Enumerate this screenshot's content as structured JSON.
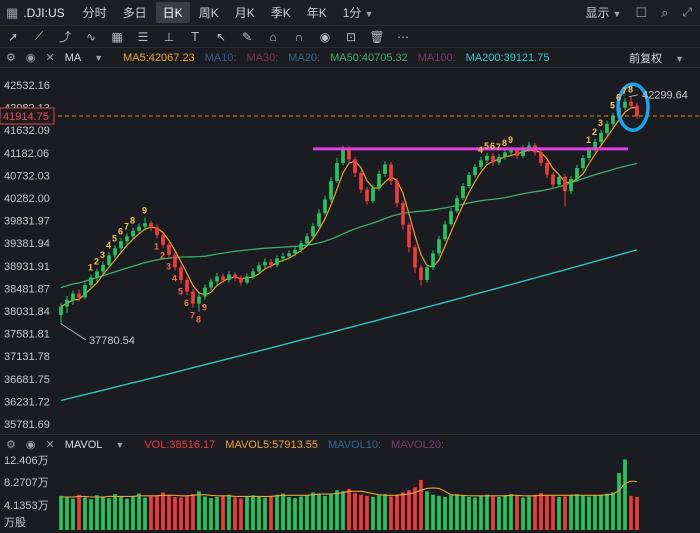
{
  "header": {
    "symbol": ".DJI:US",
    "timeframes": [
      "分时",
      "多日",
      "日K",
      "周K",
      "月K",
      "季K",
      "年K",
      "1分"
    ],
    "active_timeframe": "日K",
    "display_label": "显示"
  },
  "indicator_bar": {
    "ma_label": "MA",
    "ma5": "MA5:42067.23",
    "ma10": "MA10:",
    "ma30": "MA30:",
    "ma20": "MA20:",
    "ma50": "MA50:40705.32",
    "ma100": "MA100:",
    "ma200": "MA200:39121.75",
    "adjust": "前复权"
  },
  "volume_bar": {
    "label": "MAVOL",
    "vol": "VOL:38516.17",
    "mavol5": "MAVOL5:57913.55",
    "mavol10": "MAVOL10:",
    "mavol20": "MAVOL20:"
  },
  "colors": {
    "up": "#22c55e",
    "down": "#ef3b3b",
    "ma5": "#f0a030",
    "ma50": "#3fae6a",
    "ma200": "#31c4c4",
    "resistance": "#e040e0",
    "highlight": "#1aa3f0"
  },
  "chart_data": {
    "type": "candlestick",
    "price_ticks": [
      "42532.16",
      "42082.13",
      "41632.09",
      "41182.06",
      "40732.03",
      "40282.00",
      "39831.97",
      "39381.94",
      "38931.91",
      "38481.87",
      "38031.84",
      "37581.81",
      "37131.78",
      "36681.75",
      "36231.72",
      "35781.69"
    ],
    "ylim": [
      35781.69,
      42532.16
    ],
    "current_price": "41914.75",
    "high_label": "42299.64",
    "low_label": "37780.54",
    "volume_ticks": [
      "12.406万",
      "8.2707万",
      "4.1353万",
      "万股"
    ],
    "resistance_level": 41260,
    "candles": [
      [
        37950,
        38120,
        37780,
        38180
      ],
      [
        38120,
        38250,
        38000,
        38330
      ],
      [
        38250,
        38380,
        38150,
        38440
      ],
      [
        38380,
        38300,
        38220,
        38460
      ],
      [
        38300,
        38550,
        38260,
        38600
      ],
      [
        38550,
        38700,
        38480,
        38760
      ],
      [
        38700,
        38820,
        38620,
        38880
      ],
      [
        38820,
        38950,
        38760,
        39010
      ],
      [
        38950,
        39140,
        38900,
        39200
      ],
      [
        39140,
        39280,
        39080,
        39340
      ],
      [
        39280,
        39420,
        39210,
        39480
      ],
      [
        39420,
        39520,
        39350,
        39580
      ],
      [
        39520,
        39630,
        39460,
        39690
      ],
      [
        39630,
        39710,
        39570,
        39780
      ],
      [
        39710,
        39780,
        39640,
        39890
      ],
      [
        39780,
        39700,
        39620,
        39830
      ],
      [
        39700,
        39540,
        39480,
        39760
      ],
      [
        39540,
        39350,
        39300,
        39580
      ],
      [
        39350,
        39150,
        39080,
        39400
      ],
      [
        39150,
        38900,
        38840,
        39200
      ],
      [
        38900,
        38650,
        38580,
        38950
      ],
      [
        38650,
        38420,
        38350,
        38700
      ],
      [
        38420,
        38180,
        38100,
        38470
      ],
      [
        38180,
        38320,
        38020,
        38380
      ],
      [
        38320,
        38500,
        38260,
        38560
      ],
      [
        38500,
        38620,
        38440,
        38680
      ],
      [
        38620,
        38720,
        38560,
        38790
      ],
      [
        38720,
        38650,
        38590,
        38780
      ],
      [
        38650,
        38760,
        38600,
        38820
      ],
      [
        38760,
        38690,
        38620,
        38800
      ],
      [
        38690,
        38600,
        38540,
        38740
      ],
      [
        38600,
        38720,
        38560,
        38780
      ],
      [
        38720,
        38820,
        38660,
        38880
      ],
      [
        38820,
        38940,
        38760,
        39000
      ],
      [
        38940,
        39010,
        38880,
        39080
      ],
      [
        39010,
        38950,
        38880,
        39070
      ],
      [
        38950,
        39080,
        38900,
        39140
      ],
      [
        39080,
        39120,
        39020,
        39190
      ],
      [
        39120,
        39180,
        39060,
        39240
      ],
      [
        39180,
        39250,
        39120,
        39320
      ],
      [
        39250,
        39380,
        39200,
        39440
      ],
      [
        39380,
        39520,
        39320,
        39580
      ],
      [
        39520,
        39720,
        39480,
        39790
      ],
      [
        39720,
        39980,
        39680,
        40060
      ],
      [
        39980,
        40250,
        39940,
        40330
      ],
      [
        40250,
        40620,
        40200,
        40700
      ],
      [
        40620,
        40980,
        40580,
        41080
      ],
      [
        40980,
        41260,
        40930,
        41320
      ],
      [
        41260,
        41050,
        40960,
        41320
      ],
      [
        41050,
        40780,
        40700,
        41100
      ],
      [
        40780,
        40450,
        40380,
        40820
      ],
      [
        40450,
        40220,
        40150,
        40500
      ],
      [
        40220,
        40480,
        40180,
        40550
      ],
      [
        40480,
        40760,
        40430,
        40830
      ],
      [
        40760,
        40950,
        40700,
        41010
      ],
      [
        40950,
        40620,
        40540,
        41000
      ],
      [
        40620,
        40180,
        40100,
        40680
      ],
      [
        40180,
        39750,
        39650,
        40220
      ],
      [
        39750,
        39300,
        39200,
        39800
      ],
      [
        39300,
        38900,
        38780,
        39350
      ],
      [
        38900,
        38650,
        38540,
        38950
      ],
      [
        38650,
        38900,
        38600,
        38960
      ],
      [
        38900,
        39180,
        38850,
        39240
      ],
      [
        39180,
        39460,
        39120,
        39520
      ],
      [
        39460,
        39760,
        39420,
        39830
      ],
      [
        39760,
        40020,
        39720,
        40080
      ],
      [
        40020,
        40280,
        39980,
        40340
      ],
      [
        40280,
        40520,
        40240,
        40580
      ],
      [
        40520,
        40740,
        40480,
        40800
      ],
      [
        40740,
        40900,
        40690,
        40960
      ],
      [
        40900,
        41030,
        40850,
        41100
      ],
      [
        41030,
        41120,
        40980,
        41180
      ],
      [
        41120,
        40990,
        40920,
        41180
      ],
      [
        40990,
        41100,
        40940,
        41160
      ],
      [
        41100,
        41190,
        41040,
        41240
      ],
      [
        41190,
        41230,
        41120,
        41300
      ],
      [
        41230,
        41120,
        41060,
        41280
      ],
      [
        41120,
        41260,
        41080,
        41330
      ],
      [
        41260,
        41330,
        41200,
        41400
      ],
      [
        41330,
        41190,
        41130,
        41380
      ],
      [
        41190,
        40980,
        40920,
        41240
      ],
      [
        40980,
        40750,
        40680,
        41030
      ],
      [
        40750,
        40550,
        40460,
        40800
      ],
      [
        40550,
        40700,
        40500,
        40760
      ],
      [
        40700,
        40420,
        40120,
        40760
      ],
      [
        40420,
        40660,
        40360,
        40720
      ],
      [
        40660,
        40880,
        40600,
        40940
      ],
      [
        40880,
        41080,
        40830,
        41140
      ],
      [
        41080,
        41250,
        41030,
        41300
      ],
      [
        41250,
        41400,
        41200,
        41460
      ],
      [
        41400,
        41580,
        41350,
        41640
      ],
      [
        41580,
        41760,
        41530,
        41820
      ],
      [
        41760,
        41920,
        41700,
        41980
      ],
      [
        41920,
        42080,
        41870,
        42140
      ],
      [
        42080,
        42200,
        42030,
        42270
      ],
      [
        42200,
        42120,
        42060,
        42299
      ],
      [
        42120,
        41914,
        41860,
        42180
      ]
    ],
    "volumes": [
      60,
      58,
      55,
      62,
      57,
      54,
      61,
      59,
      56,
      63,
      58,
      55,
      60,
      64,
      57,
      59,
      61,
      66,
      62,
      58,
      57,
      60,
      63,
      68,
      59,
      56,
      58,
      60,
      62,
      57,
      55,
      58,
      61,
      59,
      57,
      60,
      62,
      64,
      58,
      56,
      59,
      61,
      66,
      63,
      60,
      64,
      70,
      68,
      72,
      65,
      62,
      60,
      58,
      61,
      63,
      59,
      62,
      66,
      70,
      75,
      88,
      68,
      62,
      60,
      58,
      61,
      63,
      60,
      58,
      57,
      60,
      62,
      59,
      58,
      61,
      63,
      60,
      57,
      59,
      62,
      65,
      61,
      60,
      58,
      59,
      62,
      63,
      60,
      59,
      61,
      62,
      64,
      66,
      100,
      124,
      60,
      58
    ],
    "volume_ma5": [
      58,
      58,
      58,
      59,
      59,
      58,
      58,
      58,
      59,
      59,
      59,
      59,
      59,
      60,
      60,
      60,
      60,
      61,
      61,
      61,
      60,
      60,
      61,
      62,
      62,
      61,
      60,
      60,
      60,
      59,
      59,
      59,
      59,
      59,
      59,
      59,
      60,
      61,
      61,
      61,
      61,
      61,
      62,
      63,
      63,
      63,
      64,
      66,
      68,
      68,
      68,
      66,
      64,
      62,
      61,
      61,
      61,
      62,
      63,
      66,
      70,
      73,
      74,
      73,
      68,
      62,
      61,
      61,
      60,
      60,
      60,
      60,
      60,
      60,
      60,
      61,
      61,
      60,
      60,
      60,
      61,
      61,
      61,
      61,
      61,
      61,
      61,
      61,
      61,
      61,
      61,
      62,
      63,
      69,
      82,
      86,
      85
    ]
  }
}
